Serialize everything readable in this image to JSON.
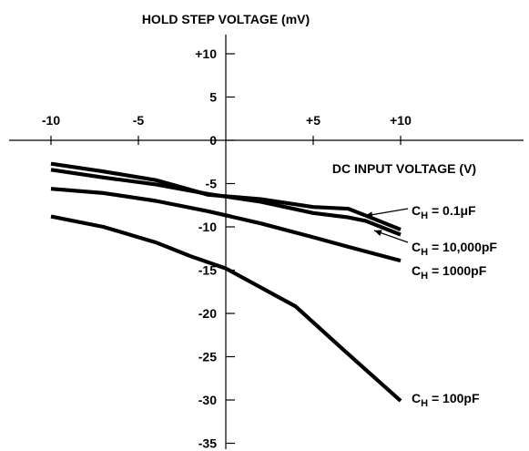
{
  "chart_data": {
    "type": "line",
    "ylabel": "HOLD STEP VOLTAGE (mV)",
    "xlabel": "DC INPUT VOLTAGE (V)",
    "xlim": [
      -10,
      10
    ],
    "ylim": [
      -35,
      10
    ],
    "x_ticks": [
      {
        "value": -10,
        "label": "-10"
      },
      {
        "value": -5,
        "label": "-5"
      },
      {
        "value": 5,
        "label": "+5"
      },
      {
        "value": 10,
        "label": "+10"
      }
    ],
    "y_ticks": [
      {
        "value": 10,
        "label": "+10"
      },
      {
        "value": 5,
        "label": "5"
      },
      {
        "value": 0,
        "label": "0"
      },
      {
        "value": -5,
        "label": "-5"
      },
      {
        "value": -10,
        "label": "-10"
      },
      {
        "value": -15,
        "label": "-15"
      },
      {
        "value": -20,
        "label": "-20"
      },
      {
        "value": -25,
        "label": "-25"
      },
      {
        "value": -30,
        "label": "-30"
      },
      {
        "value": -35,
        "label": "-35"
      }
    ],
    "grid": false,
    "series": [
      {
        "name": "CH = 0.1μF",
        "label_main": "C",
        "label_sub": "H",
        "label_rest": " = 0.1μF",
        "x": [
          -10,
          -7,
          -4,
          -1,
          2,
          5,
          7,
          8,
          10
        ],
        "y": [
          -2.7,
          -3.6,
          -4.6,
          -6.3,
          -6.8,
          -7.7,
          -7.9,
          -8.7,
          -10.3
        ]
      },
      {
        "name": "CH = 10,000pF",
        "label_main": "C",
        "label_sub": "H",
        "label_rest": " = 10,000pF",
        "x": [
          -10,
          -7,
          -4,
          -1,
          2,
          5,
          7,
          8,
          10
        ],
        "y": [
          -3.4,
          -4.3,
          -5.1,
          -6.2,
          -7.1,
          -8.4,
          -8.9,
          -9.3,
          -10.9
        ]
      },
      {
        "name": "CH = 1000pF",
        "label_main": "C",
        "label_sub": "H",
        "label_rest": " = 1000pF",
        "x": [
          -10,
          -7,
          -4,
          -1,
          2,
          5,
          7,
          10
        ],
        "y": [
          -5.6,
          -6.1,
          -7.0,
          -8.2,
          -9.6,
          -11.2,
          -12.3,
          -13.9
        ]
      },
      {
        "name": "CH = 100pF",
        "label_main": "C",
        "label_sub": "H",
        "label_rest": " = 100pF",
        "x": [
          -10,
          -7,
          -4,
          -2,
          0,
          4,
          7,
          10
        ],
        "y": [
          -8.8,
          -10.0,
          -11.8,
          -13.4,
          -14.8,
          -19.2,
          -24.7,
          -30.1
        ]
      }
    ]
  }
}
